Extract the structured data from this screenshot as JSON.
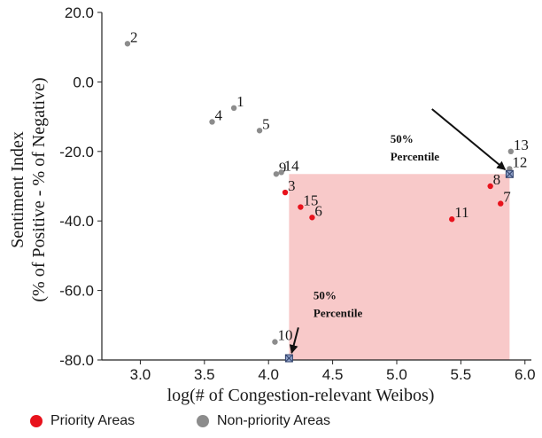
{
  "chart_data": {
    "type": "scatter",
    "xlabel": "log(# of Congestion-relevant Weibos)",
    "ylabel_line1": "Sentiment Index",
    "ylabel_line2": "(% of Positive - % of Negative)",
    "xlim": [
      2.7,
      6.05
    ],
    "ylim": [
      -80,
      20
    ],
    "x_ticks": [
      3.0,
      3.5,
      4.0,
      4.5,
      5.0,
      5.5,
      6.0
    ],
    "x_tick_labels": [
      "3.0",
      "3.5",
      "4.0",
      "4.5",
      "5.0",
      "5.5",
      "6.0"
    ],
    "y_ticks": [
      20,
      0,
      -20,
      -40,
      -60,
      -80
    ],
    "y_tick_labels": [
      "20.0",
      "0.0",
      "-20.0",
      "-40.0",
      "-60.0",
      "-80.0"
    ],
    "grid": false,
    "colors": {
      "priority": "#e8121c",
      "nonpriority": "#8c8c8c",
      "region": "#f8c9c9",
      "percentile_marker": "#8fa0c8"
    },
    "points": [
      {
        "label": "2",
        "x": 2.9,
        "y": 11.0,
        "group": "nonpriority"
      },
      {
        "label": "1",
        "x": 3.73,
        "y": -7.5,
        "group": "nonpriority"
      },
      {
        "label": "4",
        "x": 3.56,
        "y": -11.5,
        "group": "nonpriority"
      },
      {
        "label": "5",
        "x": 3.93,
        "y": -14.0,
        "group": "nonpriority"
      },
      {
        "label": "9",
        "x": 4.06,
        "y": -26.5,
        "group": "nonpriority"
      },
      {
        "label": "14",
        "x": 4.1,
        "y": -26.0,
        "group": "nonpriority"
      },
      {
        "label": "3",
        "x": 4.13,
        "y": -31.8,
        "group": "priority"
      },
      {
        "label": "15",
        "x": 4.25,
        "y": -36.0,
        "group": "priority"
      },
      {
        "label": "6",
        "x": 4.34,
        "y": -39.0,
        "group": "priority"
      },
      {
        "label": "11",
        "x": 5.43,
        "y": -39.5,
        "group": "priority"
      },
      {
        "label": "8",
        "x": 5.73,
        "y": -30.0,
        "group": "priority"
      },
      {
        "label": "7",
        "x": 5.81,
        "y": -35.0,
        "group": "priority"
      },
      {
        "label": "13",
        "x": 5.89,
        "y": -20.0,
        "group": "nonpriority"
      },
      {
        "label": "12",
        "x": 5.88,
        "y": -25.0,
        "group": "nonpriority"
      },
      {
        "label": "10",
        "x": 4.05,
        "y": -74.8,
        "group": "nonpriority"
      }
    ],
    "percentile_region": {
      "x0": 4.16,
      "x1": 5.88,
      "y_bottom": -80,
      "y_top": -26.5
    },
    "percentile_markers": [
      {
        "x": 5.88,
        "y": -26.5
      },
      {
        "x": 4.16,
        "y": -79.5
      }
    ],
    "annotations": [
      {
        "line1": "50%",
        "line2": "Percentile",
        "text_x": 4.95,
        "text_y": -17.5,
        "arrow_to": [
          5.88,
          -26.5
        ]
      },
      {
        "line1": "50%",
        "line2": "Percentile",
        "text_x": 4.35,
        "text_y": -62.5,
        "arrow_to": [
          4.16,
          -79.5
        ]
      }
    ],
    "legend": [
      {
        "label": "Priority Areas",
        "group": "priority"
      },
      {
        "label": "Non-priority Areas",
        "group": "nonpriority"
      }
    ]
  }
}
